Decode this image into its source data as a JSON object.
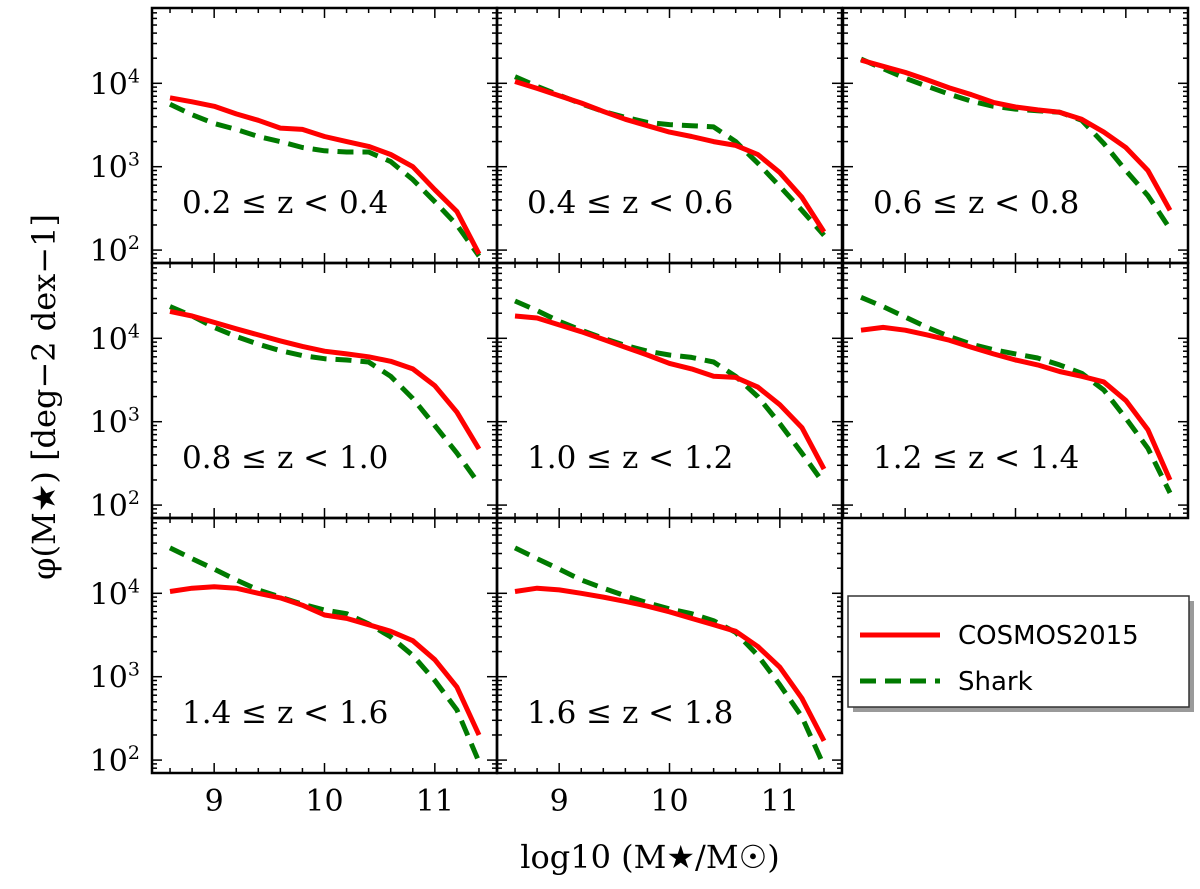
{
  "chart_data": {
    "type": "line",
    "xlabel": "log10 (M★/M☉)",
    "ylabel": "φ(M★) [deg−2 dex−1]",
    "xlim": [
      8.5,
      11.5
    ],
    "ylim": [
      70,
      80000
    ],
    "yscale": "log",
    "xticks": [
      {
        "value": 9,
        "label": "9"
      },
      {
        "value": 10,
        "label": "10"
      },
      {
        "value": 11,
        "label": "11"
      }
    ],
    "yticks": [
      {
        "value": 100,
        "base": "10",
        "exp": "2"
      },
      {
        "value": 1000,
        "base": "10",
        "exp": "3"
      },
      {
        "value": 10000,
        "base": "10",
        "exp": "4"
      }
    ],
    "legend": {
      "position": "lower-right",
      "entries": [
        {
          "name": "COSMOS2015",
          "color": "#ff0000",
          "style": "solid"
        },
        {
          "name": "Shark",
          "color": "#007a00",
          "style": "dashed"
        }
      ]
    },
    "x": [
      8.6,
      8.8,
      9.0,
      9.2,
      9.4,
      9.6,
      9.8,
      10.0,
      10.2,
      10.4,
      10.6,
      10.8,
      11.0,
      11.2,
      11.4
    ],
    "panels": [
      {
        "label": "0.2 ≤ z < 0.4",
        "series": [
          {
            "name": "COSMOS2015",
            "values": [
              6700,
              6000,
              5300,
              4300,
              3600,
              2900,
              2800,
              2300,
              2000,
              1750,
              1400,
              1000,
              530,
              290,
              90
            ]
          },
          {
            "name": "Shark",
            "values": [
              5600,
              4200,
              3300,
              2800,
              2300,
              2000,
              1700,
              1550,
              1500,
              1500,
              1150,
              700,
              380,
              200,
              85
            ]
          }
        ]
      },
      {
        "label": "0.4 ≤ z < 0.6",
        "series": [
          {
            "name": "COSMOS2015",
            "values": [
              10500,
              8700,
              7100,
              5800,
              4600,
              3700,
              3100,
              2600,
              2300,
              2000,
              1800,
              1400,
              850,
              430,
              165
            ]
          },
          {
            "name": "Shark",
            "values": [
              12000,
              9200,
              7200,
              5700,
              4600,
              3900,
              3400,
              3200,
              3100,
              3000,
              2000,
              1100,
              580,
              300,
              150
            ]
          }
        ]
      },
      {
        "label": "0.6 ≤ z < 0.8",
        "series": [
          {
            "name": "COSMOS2015",
            "values": [
              19000,
              16000,
              13500,
              11000,
              8800,
              7300,
              5900,
              5200,
              4800,
              4500,
              3700,
              2600,
              1700,
              900,
              300
            ]
          },
          {
            "name": "Shark",
            "values": [
              19500,
              15000,
              11500,
              9200,
              7400,
              6100,
              5300,
              4900,
              4700,
              4500,
              3600,
              1900,
              900,
              450,
              180
            ]
          }
        ]
      },
      {
        "label": "0.8 ≤ z < 1.0",
        "series": [
          {
            "name": "COSMOS2015",
            "values": [
              21000,
              18500,
              15500,
              13000,
              11000,
              9300,
              8000,
              7000,
              6500,
              6000,
              5300,
              4300,
              2700,
              1300,
              470
            ]
          },
          {
            "name": "Shark",
            "values": [
              24000,
              18500,
              13500,
              10500,
              8500,
              7100,
              6200,
              5700,
              5500,
              5200,
              3500,
              1900,
              900,
              420,
              180
            ]
          }
        ]
      },
      {
        "label": "1.0 ≤ z < 1.2",
        "series": [
          {
            "name": "COSMOS2015",
            "values": [
              18500,
              17500,
              14500,
              12000,
              9700,
              7800,
              6300,
              5000,
              4300,
              3500,
              3400,
              2600,
              1600,
              850,
              270
            ]
          },
          {
            "name": "Shark",
            "values": [
              28000,
              21500,
              16000,
              12500,
              10000,
              8200,
              7000,
              6300,
              5900,
              5200,
              3500,
              2000,
              950,
              420,
              180
            ]
          }
        ]
      },
      {
        "label": "1.2 ≤ z < 1.4",
        "series": [
          {
            "name": "COSMOS2015",
            "values": [
              12500,
              13500,
              12500,
              11000,
              9500,
              7800,
              6500,
              5500,
              4800,
              4000,
              3500,
              3000,
              1800,
              800,
              200
            ]
          },
          {
            "name": "Shark",
            "values": [
              31000,
              24000,
              18000,
              13500,
              10500,
              8500,
              7300,
              6500,
              5800,
              4800,
              3800,
              2400,
              1100,
              480,
              140
            ]
          }
        ]
      },
      {
        "label": "1.4 ≤ z < 1.6",
        "series": [
          {
            "name": "COSMOS2015",
            "values": [
              10500,
              11500,
              12000,
              11500,
              10000,
              8800,
              7200,
              5500,
              5000,
              4200,
              3500,
              2700,
              1600,
              750,
              200
            ]
          },
          {
            "name": "Shark",
            "values": [
              35000,
              26000,
              19500,
              14500,
              11000,
              9000,
              7400,
              6300,
              5700,
              4300,
              3000,
              1800,
              900,
              400,
              95
            ]
          }
        ]
      },
      {
        "label": "1.6 ≤ z < 1.8",
        "series": [
          {
            "name": "COSMOS2015",
            "values": [
              10500,
              11500,
              11000,
              10000,
              9000,
              8000,
              7000,
              6000,
              5000,
              4200,
              3500,
              2300,
              1300,
              550,
              170
            ]
          },
          {
            "name": "Shark",
            "values": [
              35000,
              26000,
              19500,
              14500,
              11500,
              9300,
              7700,
              6500,
              5700,
              4700,
              3400,
              1800,
              800,
              330,
              85
            ]
          }
        ]
      }
    ]
  }
}
